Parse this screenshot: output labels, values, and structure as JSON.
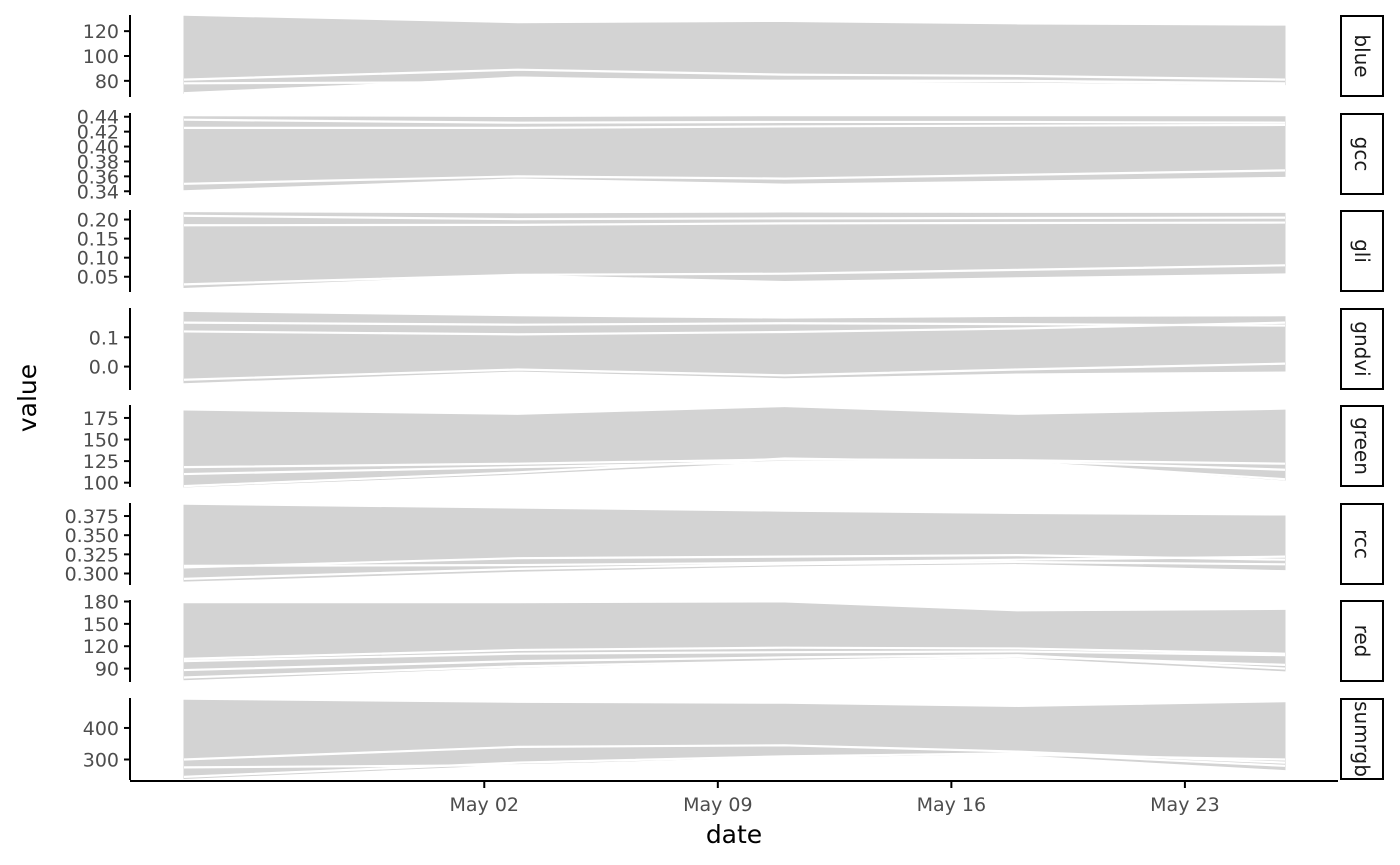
{
  "chart_data": {
    "type": "line",
    "xlabel": "date",
    "ylabel": "value",
    "x_range": [
      "2023-04-23",
      "2023-05-26"
    ],
    "x_ticks": [
      {
        "date": "2023-05-02",
        "label": "May 02"
      },
      {
        "date": "2023-05-09",
        "label": "May 09"
      },
      {
        "date": "2023-05-16",
        "label": "May 16"
      },
      {
        "date": "2023-05-23",
        "label": "May 23"
      }
    ],
    "dates": [
      "2023-04-23",
      "2023-05-03",
      "2023-05-11",
      "2023-05-18",
      "2023-05-26"
    ],
    "line_color": "#d3d3d3",
    "strip_border_color": "#000000",
    "grid": false,
    "legend": "none",
    "panels": [
      {
        "variable": "blue",
        "ylim": [
          67,
          133
        ],
        "y_ticks": [
          {
            "value": 80,
            "label": "80"
          },
          {
            "value": 100,
            "label": "100"
          },
          {
            "value": 120,
            "label": "120"
          }
        ],
        "envelope": {
          "upper": [
            132,
            126,
            127,
            125,
            124
          ],
          "lower": [
            70,
            84,
            80,
            79,
            77
          ]
        },
        "highlight_lines": [
          [
            81,
            89,
            85,
            84,
            81
          ],
          [
            70,
            82,
            80,
            80,
            78
          ],
          [
            78,
            79,
            80,
            80,
            77
          ]
        ]
      },
      {
        "variable": "gcc",
        "ylim": [
          0.335,
          0.445
        ],
        "y_ticks": [
          {
            "value": 0.34,
            "label": "0.34"
          },
          {
            "value": 0.36,
            "label": "0.36"
          },
          {
            "value": 0.38,
            "label": "0.38"
          },
          {
            "value": 0.4,
            "label": "0.40"
          },
          {
            "value": 0.42,
            "label": "0.42"
          },
          {
            "value": 0.44,
            "label": "0.44"
          }
        ],
        "envelope": {
          "upper": [
            0.44,
            0.439,
            0.44,
            0.44,
            0.44
          ],
          "lower": [
            0.342,
            0.358,
            0.351,
            0.355,
            0.36
          ]
        },
        "highlight_lines": [
          [
            0.436,
            0.432,
            0.433,
            0.433,
            0.432
          ],
          [
            0.425,
            0.425,
            0.427,
            0.428,
            0.429
          ],
          [
            0.35,
            0.36,
            0.357,
            0.362,
            0.368
          ]
        ]
      },
      {
        "variable": "gli",
        "ylim": [
          0.01,
          0.225
        ],
        "y_ticks": [
          {
            "value": 0.05,
            "label": "0.05"
          },
          {
            "value": 0.1,
            "label": "0.10"
          },
          {
            "value": 0.15,
            "label": "0.15"
          },
          {
            "value": 0.2,
            "label": "0.20"
          }
        ],
        "envelope": {
          "upper": [
            0.218,
            0.215,
            0.217,
            0.216,
            0.216
          ],
          "lower": [
            0.022,
            0.057,
            0.04,
            0.05,
            0.06
          ]
        },
        "highlight_lines": [
          [
            0.21,
            0.201,
            0.203,
            0.204,
            0.205
          ],
          [
            0.185,
            0.186,
            0.19,
            0.191,
            0.192
          ],
          [
            0.03,
            0.055,
            0.058,
            0.068,
            0.08
          ]
        ]
      },
      {
        "variable": "gndvi",
        "ylim": [
          -0.08,
          0.2
        ],
        "y_ticks": [
          {
            "value": 0.0,
            "label": "0.0"
          },
          {
            "value": 0.1,
            "label": "0.1"
          }
        ],
        "envelope": {
          "upper": [
            0.185,
            0.17,
            0.162,
            0.168,
            0.17
          ],
          "lower": [
            -0.055,
            -0.015,
            -0.038,
            -0.022,
            -0.015
          ]
        },
        "highlight_lines": [
          [
            0.15,
            0.143,
            0.148,
            0.145,
            0.14
          ],
          [
            0.12,
            0.11,
            0.118,
            0.13,
            0.15
          ],
          [
            -0.045,
            -0.01,
            -0.03,
            -0.01,
            0.01
          ]
        ]
      },
      {
        "variable": "green",
        "ylim": [
          95,
          190
        ],
        "y_ticks": [
          {
            "value": 100,
            "label": "100"
          },
          {
            "value": 125,
            "label": "125"
          },
          {
            "value": 150,
            "label": "150"
          },
          {
            "value": 175,
            "label": "175"
          }
        ],
        "envelope": {
          "upper": [
            183,
            178,
            187,
            178,
            184
          ],
          "lower": [
            95,
            110,
            125,
            125,
            103
          ]
        },
        "highlight_lines": [
          [
            110,
            118,
            124,
            125,
            115
          ],
          [
            118,
            122,
            127,
            126,
            122
          ],
          [
            96,
            112,
            128,
            124,
            104
          ]
        ]
      },
      {
        "variable": "rcc",
        "ylim": [
          0.285,
          0.392
        ],
        "y_ticks": [
          {
            "value": 0.3,
            "label": "0.300"
          },
          {
            "value": 0.325,
            "label": "0.325"
          },
          {
            "value": 0.35,
            "label": "0.350"
          },
          {
            "value": 0.375,
            "label": "0.375"
          }
        ],
        "envelope": {
          "upper": [
            0.389,
            0.384,
            0.38,
            0.377,
            0.375
          ],
          "lower": [
            0.29,
            0.303,
            0.31,
            0.313,
            0.305
          ]
        },
        "highlight_lines": [
          [
            0.308,
            0.32,
            0.322,
            0.324,
            0.318
          ],
          [
            0.293,
            0.306,
            0.312,
            0.315,
            0.312
          ],
          [
            0.31,
            0.311,
            0.314,
            0.318,
            0.322
          ]
        ]
      },
      {
        "variable": "red",
        "ylim": [
          72,
          182
        ],
        "y_ticks": [
          {
            "value": 90,
            "label": "90"
          },
          {
            "value": 120,
            "label": "120"
          },
          {
            "value": 150,
            "label": "150"
          },
          {
            "value": 180,
            "label": "180"
          }
        ],
        "envelope": {
          "upper": [
            177,
            177,
            178,
            166,
            168
          ],
          "lower": [
            75,
            92,
            100,
            105,
            87
          ]
        },
        "highlight_lines": [
          [
            88,
            100,
            105,
            108,
            90
          ],
          [
            78,
            93,
            100,
            106,
            95
          ],
          [
            100,
            110,
            112,
            113,
            108
          ],
          [
            103,
            115,
            118,
            117,
            110
          ]
        ]
      },
      {
        "variable": "sumrgb",
        "ylim": [
          235,
          495
        ],
        "y_ticks": [
          {
            "value": 300,
            "label": "300"
          },
          {
            "value": 400,
            "label": "400"
          }
        ],
        "envelope": {
          "upper": [
            488,
            478,
            475,
            465,
            480
          ],
          "lower": [
            240,
            285,
            310,
            315,
            268
          ]
        },
        "highlight_lines": [
          [
            275,
            282,
            300,
            315,
            300
          ],
          [
            300,
            340,
            345,
            325,
            290
          ],
          [
            245,
            290,
            310,
            320,
            280
          ]
        ]
      }
    ]
  }
}
